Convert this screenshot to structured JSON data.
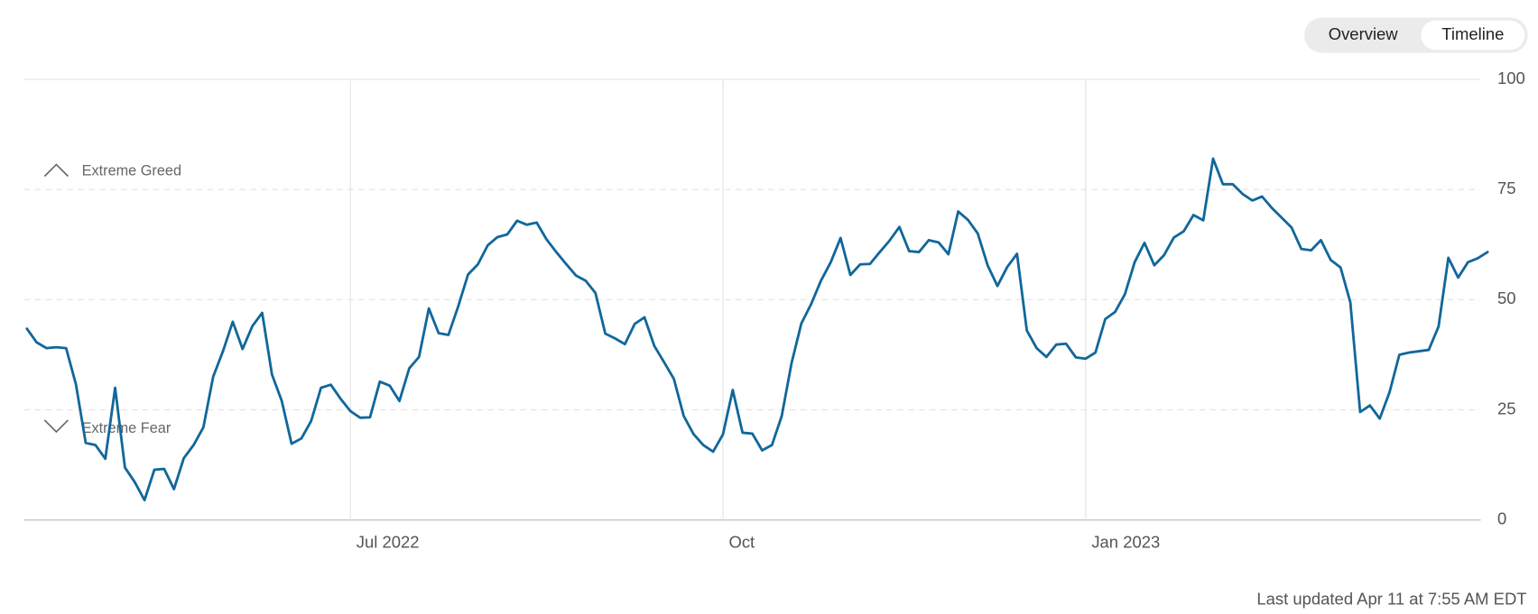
{
  "buttons": [
    "Overview",
    "Timeline"
  ],
  "footer": "Last updated Apr 11 at 7:55 AM EDT",
  "chart_data": {
    "type": "line",
    "annotations": [
      "Extreme Greed",
      "Extreme Fear"
    ],
    "categories": [
      null,
      null,
      null,
      null,
      null,
      null,
      null,
      null,
      null,
      null,
      null,
      null,
      null,
      null,
      null,
      null,
      null,
      null,
      null,
      null,
      null,
      null,
      null,
      null,
      null,
      null,
      null,
      null,
      null,
      null,
      null,
      null,
      null,
      "Jul 2022",
      null,
      null,
      null,
      null,
      null,
      null,
      null,
      null,
      null,
      null,
      null,
      null,
      null,
      null,
      null,
      null,
      null,
      null,
      null,
      null,
      null,
      null,
      null,
      null,
      null,
      null,
      null,
      null,
      null,
      null,
      null,
      null,
      null,
      null,
      null,
      null,
      null,
      "Oct",
      null,
      null,
      null,
      null,
      null,
      null,
      null,
      null,
      null,
      null,
      null,
      null,
      null,
      null,
      null,
      null,
      null,
      null,
      null,
      null,
      null,
      null,
      null,
      null,
      null,
      null,
      null,
      null,
      null,
      null,
      null,
      null,
      null,
      null,
      null,
      null,
      "Jan 2023",
      null,
      null,
      null,
      null,
      null,
      null,
      null,
      null,
      null,
      null,
      null,
      null,
      null,
      null,
      null,
      null,
      null,
      null,
      null,
      null,
      null,
      null,
      null,
      null,
      null,
      null,
      null,
      null,
      null,
      null,
      null,
      null,
      null,
      null,
      null,
      null,
      null,
      null,
      null,
      null,
      null
    ],
    "values": [
      43.4,
      40.3,
      39,
      39.2,
      39,
      30.8,
      17.5,
      17,
      13.9,
      30,
      11.9,
      8.6,
      4.5,
      11.4,
      11.6,
      7,
      14,
      17,
      21,
      32.5,
      38.3,
      45,
      38.8,
      44,
      47,
      33,
      27,
      17.3,
      18.5,
      22.5,
      30,
      30.7,
      27.5,
      24.7,
      23.2,
      23.3,
      31.4,
      30.5,
      27,
      34.4,
      37,
      48,
      42.4,
      42,
      48.5,
      55.7,
      58,
      62.3,
      64.2,
      64.8,
      67.9,
      67,
      67.5,
      63.7,
      60.8,
      58.1,
      55.5,
      54.3,
      51.5,
      42.3,
      41.2,
      39.9,
      44.5,
      46,
      39.5,
      35.8,
      32,
      23.6,
      19.5,
      17,
      15.5,
      19.4,
      29.5,
      19.8,
      19.6,
      15.8,
      17,
      23.6,
      35.6,
      44.6,
      49,
      54.3,
      58.5,
      64,
      55.6,
      58,
      58.1,
      60.8,
      63.4,
      66.5,
      61,
      60.8,
      63.5,
      63,
      60.3,
      70,
      68.1,
      65,
      57.8,
      53.1,
      57.4,
      60.4,
      43,
      39,
      37,
      39.8,
      40,
      36.9,
      36.6,
      38,
      45.6,
      47.2,
      51.2,
      58.5,
      62.9,
      57.8,
      60.1,
      64.1,
      65.5,
      69.2,
      68,
      82,
      76.2,
      76.2,
      74,
      72.5,
      73.4,
      70.8,
      68.6,
      66.4,
      61.5,
      61.2,
      63.5,
      59,
      57.3,
      49.4,
      24.5,
      26,
      23,
      29,
      37.5,
      38,
      38.3,
      38.6,
      43.9,
      59.5,
      55,
      58.5,
      59.4,
      60.8
    ],
    "color": "#11679b",
    "ylim": [
      0,
      100
    ],
    "yticks": [
      0,
      25,
      50,
      75,
      100
    ],
    "grid": true
  }
}
